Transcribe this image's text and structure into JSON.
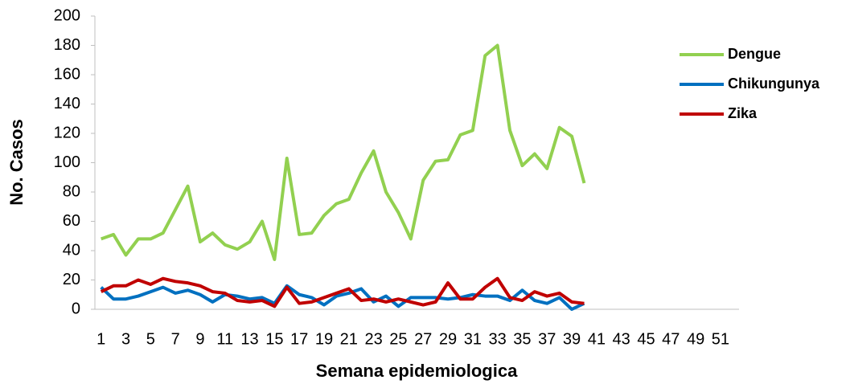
{
  "chart_data": {
    "type": "line",
    "xlabel": "Semana epidemiologica",
    "ylabel": "No. Casos",
    "categories": [
      1,
      null,
      3,
      null,
      5,
      null,
      7,
      null,
      9,
      null,
      11,
      null,
      13,
      null,
      15,
      null,
      17,
      null,
      19,
      null,
      21,
      null,
      23,
      null,
      25,
      null,
      27,
      null,
      29,
      null,
      31,
      null,
      33,
      null,
      35,
      null,
      37,
      null,
      39,
      null,
      41,
      null,
      43,
      null,
      45,
      null,
      47,
      null,
      49,
      null,
      51,
      null
    ],
    "series": [
      {
        "name": "Dengue",
        "color": "#92d050",
        "values": [
          48,
          51,
          37,
          48,
          48,
          52,
          68,
          84,
          46,
          52,
          44,
          41,
          46,
          60,
          34,
          103,
          51,
          52,
          64,
          72,
          75,
          93,
          108,
          80,
          66,
          48,
          88,
          101,
          102,
          119,
          122,
          173,
          180,
          122,
          98,
          106,
          96,
          124,
          118,
          86,
          null,
          null,
          null,
          null,
          null,
          null,
          null,
          null,
          null,
          null,
          null,
          null
        ]
      },
      {
        "name": "Chikungunya",
        "color": "#0070c0",
        "values": [
          15,
          7,
          7,
          9,
          12,
          15,
          11,
          13,
          10,
          5,
          10,
          9,
          7,
          8,
          4,
          16,
          10,
          8,
          3,
          9,
          11,
          14,
          5,
          9,
          2,
          8,
          8,
          8,
          7,
          8,
          10,
          9,
          9,
          6,
          13,
          6,
          4,
          8,
          0,
          4,
          null,
          null,
          null,
          null,
          null,
          null,
          null,
          null,
          null,
          null,
          null,
          null
        ]
      },
      {
        "name": "Zika",
        "color": "#c00000",
        "values": [
          12,
          16,
          16,
          20,
          17,
          21,
          19,
          18,
          16,
          12,
          11,
          6,
          5,
          6,
          2,
          15,
          4,
          5,
          8,
          11,
          14,
          6,
          7,
          5,
          7,
          5,
          3,
          5,
          18,
          7,
          7,
          15,
          21,
          8,
          6,
          12,
          9,
          11,
          5,
          4,
          null,
          null,
          null,
          null,
          null,
          null,
          null,
          null,
          null,
          null,
          null,
          null
        ]
      }
    ],
    "ylim": [
      0,
      200
    ],
    "yticks": [
      0,
      20,
      40,
      60,
      80,
      100,
      120,
      140,
      160,
      180,
      200
    ],
    "grid": false,
    "legend": "right"
  }
}
